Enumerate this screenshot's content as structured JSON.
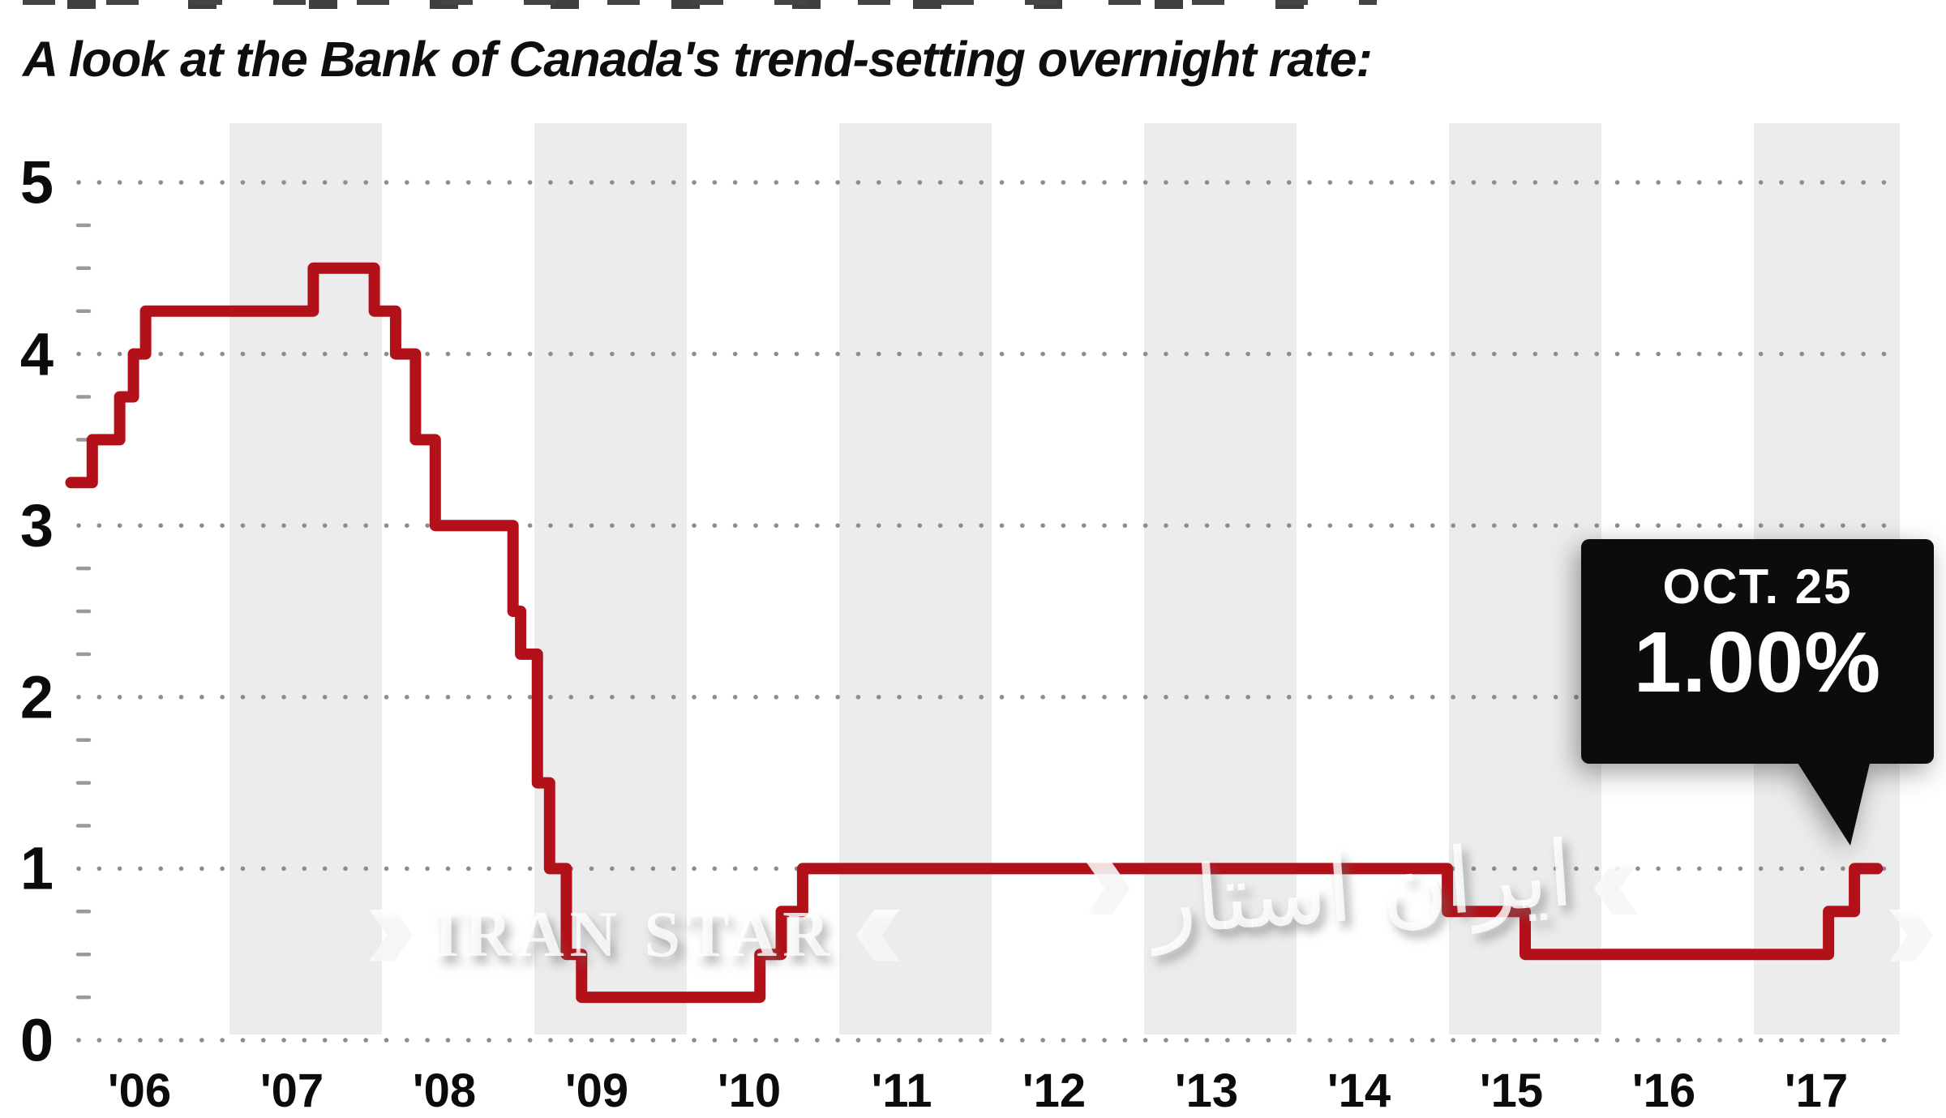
{
  "title": "A look at the Bank of Canada's trend-setting overnight rate:",
  "callout": {
    "date": "OCT. 25",
    "rate": "1.00%"
  },
  "watermarks": {
    "latin": "IRAN STAR",
    "persian": "ایران استار"
  },
  "colors": {
    "line": "#b31119",
    "band": "#ececec",
    "dot": "#8d8d8d",
    "minor_tick": "#9a9a9a",
    "callout_bg": "#0c0c0c",
    "callout_text": "#ffffff",
    "text": "#0b0b0b"
  },
  "chart_data": {
    "type": "line",
    "title": "A look at the Bank of Canada's trend-setting overnight rate:",
    "xlabel": "",
    "ylabel": "",
    "ylim": [
      0,
      5
    ],
    "y_ticks": [
      0,
      1,
      2,
      3,
      4,
      5
    ],
    "y_minor_step": 0.25,
    "x_tick_labels": [
      "'06",
      "'07",
      "'08",
      "'09",
      "'10",
      "'11",
      "'12",
      "'13",
      "'14",
      "'15",
      "'16",
      "'17"
    ],
    "x_start_year": 2006,
    "x_end": 2017.96,
    "shaded_years": [
      2007,
      2009,
      2011,
      2013,
      2015,
      2017
    ],
    "grid": "dotted-horizontal",
    "legend": "none",
    "step_style": "step-after",
    "series": [
      {
        "name": "Bank of Canada overnight rate (%)",
        "points": [
          {
            "x": 2005.96,
            "y": 3.25
          },
          {
            "x": 2006.1,
            "y": 3.5
          },
          {
            "x": 2006.28,
            "y": 3.75
          },
          {
            "x": 2006.37,
            "y": 4.0
          },
          {
            "x": 2006.45,
            "y": 4.25
          },
          {
            "x": 2007.55,
            "y": 4.5
          },
          {
            "x": 2007.95,
            "y": 4.25
          },
          {
            "x": 2008.09,
            "y": 4.0
          },
          {
            "x": 2008.22,
            "y": 3.5
          },
          {
            "x": 2008.35,
            "y": 3.0
          },
          {
            "x": 2008.86,
            "y": 2.5
          },
          {
            "x": 2008.91,
            "y": 2.25
          },
          {
            "x": 2009.02,
            "y": 1.5
          },
          {
            "x": 2009.1,
            "y": 1.0
          },
          {
            "x": 2009.21,
            "y": 0.5
          },
          {
            "x": 2009.31,
            "y": 0.25
          },
          {
            "x": 2010.48,
            "y": 0.5
          },
          {
            "x": 2010.62,
            "y": 0.75
          },
          {
            "x": 2010.76,
            "y": 1.0
          },
          {
            "x": 2014.99,
            "y": 0.75
          },
          {
            "x": 2015.5,
            "y": 0.5
          },
          {
            "x": 2017.49,
            "y": 0.75
          },
          {
            "x": 2017.66,
            "y": 1.0
          },
          {
            "x": 2017.81,
            "y": 1.0
          }
        ]
      }
    ],
    "annotation": {
      "line1": "OCT. 25",
      "line2": "1.00%",
      "x": 2017.81,
      "y": 1.0
    }
  }
}
